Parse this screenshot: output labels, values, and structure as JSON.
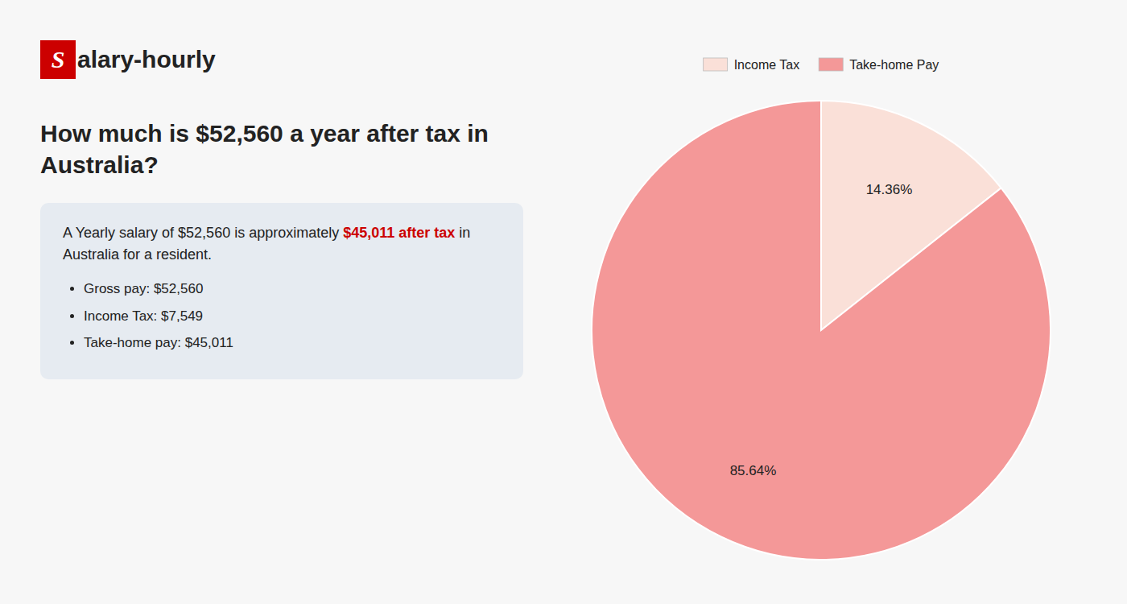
{
  "chart_data": {
    "type": "pie",
    "title": "How much is $52,560 a year after tax in Australia?",
    "categories": [
      "Income Tax",
      "Take-home Pay"
    ],
    "values": [
      14.36,
      85.64
    ],
    "value_labels": [
      "14.36%",
      "85.64%"
    ],
    "colors": [
      "#fae0d8",
      "#f49898"
    ],
    "data_labels": true,
    "legend": "top",
    "annotations": [
      "S",
      "alary-hourly",
      "A Yearly salary of $52,560 is approximately ",
      "$45,011 after tax",
      " in",
      "Australia for a resident.",
      "Gross pay: $52,560",
      "Income Tax: $7,549",
      "Take-home pay: $45,011"
    ]
  }
}
